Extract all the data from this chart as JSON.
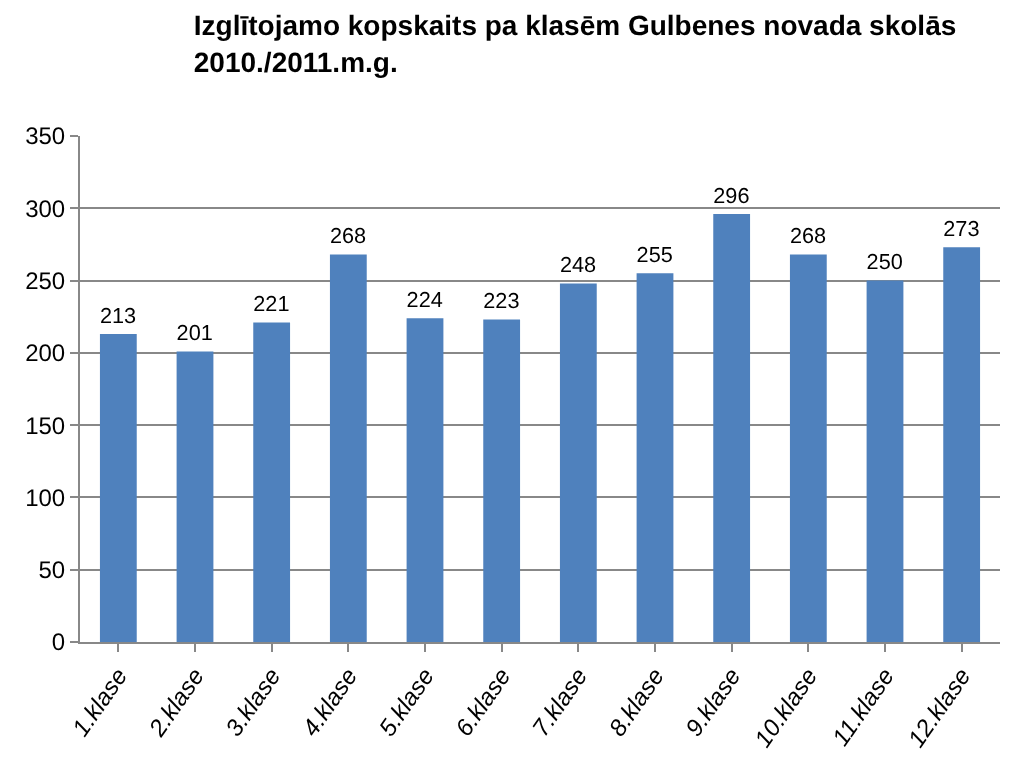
{
  "chart_data": {
    "type": "bar",
    "title": "Izglītojamo kopskaits pa klasēm Gulbenes novada skolās\n2010./2011.m.g.",
    "categories": [
      "1.klase",
      "2.klase",
      "3.klase",
      "4.klase",
      "5.klase",
      "6.klase",
      "7.klase",
      "8.klase",
      "9.klase",
      "10.klase",
      "11.klase",
      "12.klase"
    ],
    "values": [
      213,
      201,
      221,
      268,
      224,
      223,
      248,
      255,
      296,
      268,
      250,
      273
    ],
    "color": "#4f81bd",
    "ylim": [
      0,
      350
    ],
    "yticks": [
      0,
      50,
      100,
      150,
      200,
      250,
      300,
      350
    ],
    "grid": "y",
    "data_labels": true
  }
}
